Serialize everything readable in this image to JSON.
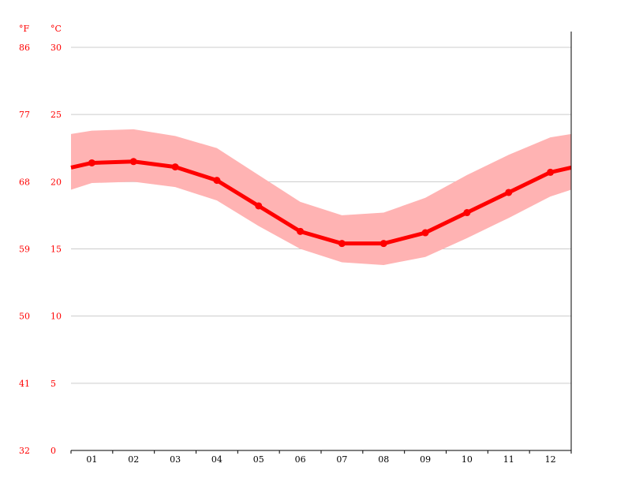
{
  "chart_data": {
    "type": "line",
    "title": "",
    "xlabel": "",
    "ylabel": "",
    "unit_labels": {
      "fahrenheit": "°F",
      "celsius": "°C"
    },
    "categories": [
      "01",
      "02",
      "03",
      "04",
      "05",
      "06",
      "07",
      "08",
      "09",
      "10",
      "11",
      "12"
    ],
    "series": [
      {
        "values": [
          21.4,
          21.5,
          21.1,
          20.1,
          18.2,
          16.3,
          15.4,
          15.4,
          16.2,
          17.7,
          19.2,
          20.7
        ]
      }
    ],
    "range_band": {
      "upper": [
        23.8,
        23.9,
        23.4,
        22.5,
        20.5,
        18.5,
        17.5,
        17.7,
        18.8,
        20.5,
        22.0,
        23.3
      ],
      "lower": [
        19.9,
        20.0,
        19.6,
        18.6,
        16.7,
        15.0,
        14.0,
        13.8,
        14.4,
        15.8,
        17.3,
        18.9
      ]
    },
    "ylim": [
      0,
      30
    ],
    "y_ticks_c": [
      "0",
      "5",
      "10",
      "15",
      "20",
      "25",
      "30"
    ],
    "y_ticks_f": [
      "32",
      "41",
      "50",
      "59",
      "68",
      "77",
      "86"
    ],
    "grid": true,
    "colors": {
      "line": "#ff0000",
      "band": "#ffb3b3",
      "grid": "#cccccc",
      "tick_text": "#ff0000",
      "axis": "#000000"
    }
  }
}
